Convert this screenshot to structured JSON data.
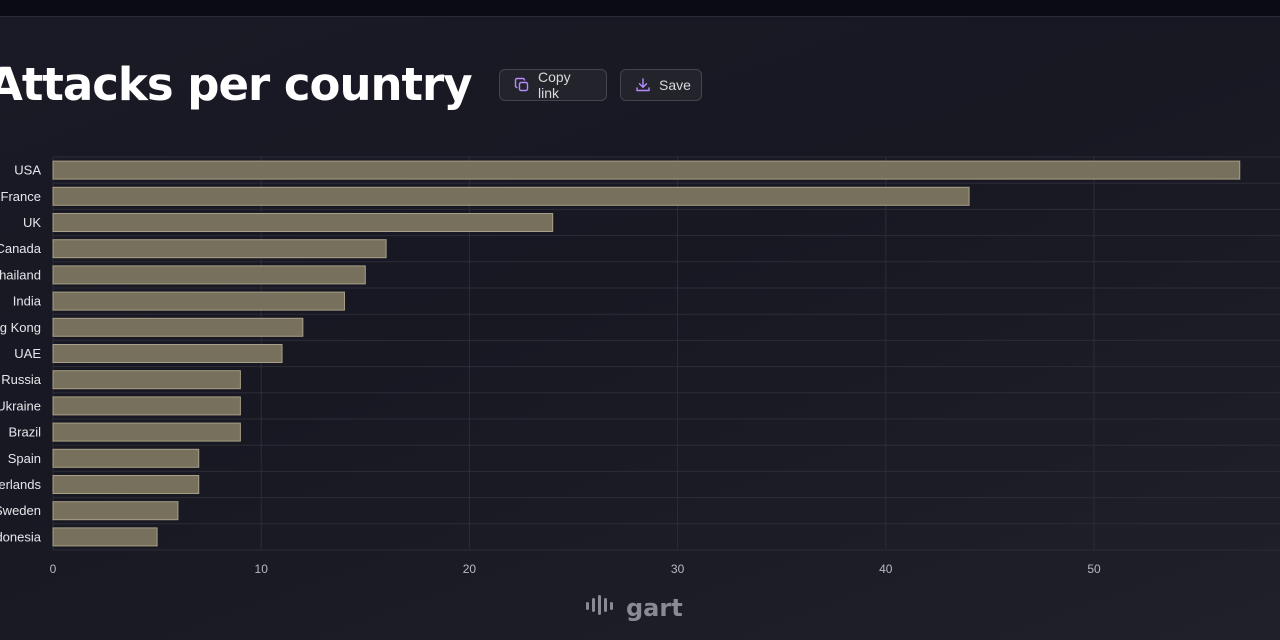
{
  "title": "Attacks per country",
  "buttons": {
    "copy_label": "Copy link",
    "save_label": "Save"
  },
  "icons": {
    "copy": "copy-icon",
    "save": "download-icon",
    "brand": "soundwave-logo-icon"
  },
  "brand": {
    "name": "gart"
  },
  "colors": {
    "bar_fill": "#77705c",
    "bar_stroke": "#a8a086",
    "accent": "#b58cff"
  },
  "chart_data": {
    "type": "bar",
    "orientation": "horizontal",
    "title": "Attacks per country",
    "xlabel": "",
    "ylabel": "",
    "categories": [
      "USA",
      "France",
      "UK",
      "Canada",
      "Thailand",
      "India",
      "Hong Kong",
      "UAE",
      "Russia",
      "Ukraine",
      "Brazil",
      "Spain",
      "Netherlands",
      "Sweden",
      "Indonesia"
    ],
    "values": [
      57,
      44,
      24,
      16,
      15,
      14,
      12,
      11,
      9,
      9,
      9,
      7,
      7,
      6,
      5
    ],
    "xlim": [
      0,
      59
    ],
    "xticks": [
      0,
      10,
      20,
      30,
      40,
      50
    ],
    "grid": true,
    "legend": "none"
  }
}
